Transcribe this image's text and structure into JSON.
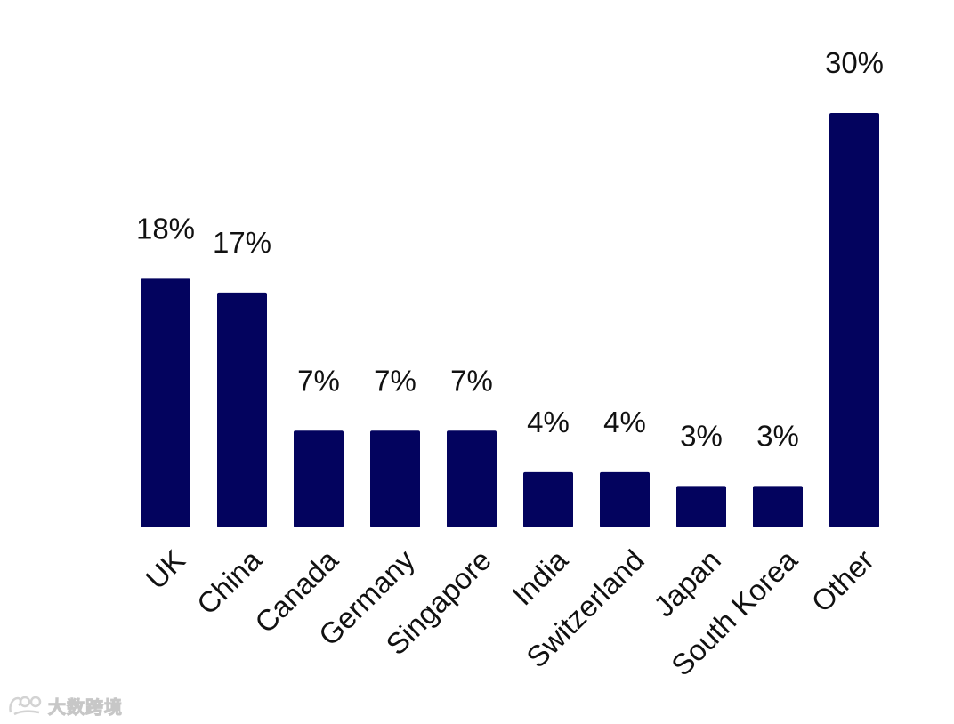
{
  "chart_data": {
    "type": "bar",
    "categories": [
      "UK",
      "China",
      "Canada",
      "Germany",
      "Singapore",
      "India",
      "Switzerland",
      "Japan",
      "South Korea",
      "Other"
    ],
    "values": [
      18,
      17,
      7,
      7,
      7,
      4,
      4,
      3,
      3,
      30
    ],
    "data_labels": [
      "18%",
      "17%",
      "7%",
      "7%",
      "7%",
      "4%",
      "4%",
      "3%",
      "3%",
      "30%"
    ],
    "unit": "%",
    "title": "",
    "xlabel": "",
    "ylabel": "",
    "ylim": [
      0,
      30
    ],
    "grid": false,
    "legend": "none",
    "bar_color": "#03035e"
  },
  "watermark": {
    "logo": "dashu-kuajing-logo",
    "text": "大数跨境"
  }
}
